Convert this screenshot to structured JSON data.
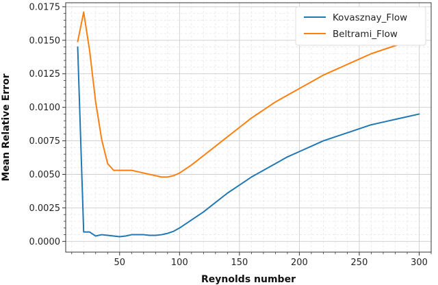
{
  "chart_data": {
    "type": "line",
    "title": "",
    "xlabel": "Reynolds number",
    "ylabel": "Mean Relative Error",
    "xlim": [
      5,
      310
    ],
    "ylim": [
      -0.0008,
      0.0178
    ],
    "xticks": [
      50,
      100,
      150,
      200,
      250,
      300
    ],
    "xtick_labels": [
      "50",
      "100",
      "150",
      "200",
      "250",
      "300"
    ],
    "yticks": [
      0,
      0.0025,
      0.005,
      0.0075,
      0.01,
      0.0125,
      0.015,
      0.0175
    ],
    "ytick_labels": [
      "0.0000",
      "0.0025",
      "0.0050",
      "0.0075",
      "0.0100",
      "0.0125",
      "0.0150",
      "0.0175"
    ],
    "grid": true,
    "minor_grid": true,
    "legend_position": "top-right",
    "series": [
      {
        "name": "Kovasznay_Flow",
        "color": "#1f77b4",
        "points": [
          [
            15,
            0.0145
          ],
          [
            20,
            0.0007
          ],
          [
            25,
            0.0007
          ],
          [
            30,
            0.0004
          ],
          [
            35,
            0.0005
          ],
          [
            40,
            0.00045
          ],
          [
            45,
            0.0004
          ],
          [
            50,
            0.00035
          ],
          [
            55,
            0.0004
          ],
          [
            60,
            0.0005
          ],
          [
            65,
            0.0005
          ],
          [
            70,
            0.0005
          ],
          [
            75,
            0.00045
          ],
          [
            80,
            0.00045
          ],
          [
            85,
            0.0005
          ],
          [
            90,
            0.0006
          ],
          [
            95,
            0.00075
          ],
          [
            100,
            0.001
          ],
          [
            110,
            0.0016
          ],
          [
            120,
            0.0022
          ],
          [
            130,
            0.0029
          ],
          [
            140,
            0.0036
          ],
          [
            150,
            0.0042
          ],
          [
            160,
            0.0048
          ],
          [
            170,
            0.0053
          ],
          [
            180,
            0.0058
          ],
          [
            190,
            0.0063
          ],
          [
            200,
            0.0067
          ],
          [
            210,
            0.0071
          ],
          [
            220,
            0.0075
          ],
          [
            230,
            0.0078
          ],
          [
            240,
            0.0081
          ],
          [
            250,
            0.0084
          ],
          [
            260,
            0.0087
          ],
          [
            270,
            0.0089
          ],
          [
            280,
            0.0091
          ],
          [
            290,
            0.0093
          ],
          [
            300,
            0.0095
          ]
        ]
      },
      {
        "name": "Beltrami_Flow",
        "color": "#ff7f0e",
        "points": [
          [
            15,
            0.0149
          ],
          [
            20,
            0.0171
          ],
          [
            25,
            0.0142
          ],
          [
            30,
            0.0104
          ],
          [
            35,
            0.0076
          ],
          [
            40,
            0.0058
          ],
          [
            45,
            0.0053
          ],
          [
            50,
            0.0053
          ],
          [
            55,
            0.0053
          ],
          [
            60,
            0.0053
          ],
          [
            65,
            0.0052
          ],
          [
            70,
            0.0051
          ],
          [
            75,
            0.005
          ],
          [
            80,
            0.0049
          ],
          [
            85,
            0.0048
          ],
          [
            90,
            0.0048
          ],
          [
            95,
            0.0049
          ],
          [
            100,
            0.0051
          ],
          [
            110,
            0.0057
          ],
          [
            120,
            0.0064
          ],
          [
            130,
            0.0071
          ],
          [
            140,
            0.0078
          ],
          [
            150,
            0.0085
          ],
          [
            160,
            0.0092
          ],
          [
            170,
            0.0098
          ],
          [
            180,
            0.0104
          ],
          [
            190,
            0.0109
          ],
          [
            200,
            0.0114
          ],
          [
            210,
            0.0119
          ],
          [
            220,
            0.0124
          ],
          [
            230,
            0.0128
          ],
          [
            240,
            0.0132
          ],
          [
            250,
            0.0136
          ],
          [
            260,
            0.014
          ],
          [
            270,
            0.0143
          ],
          [
            280,
            0.0146
          ],
          [
            290,
            0.0149
          ],
          [
            300,
            0.0152
          ]
        ]
      }
    ]
  }
}
